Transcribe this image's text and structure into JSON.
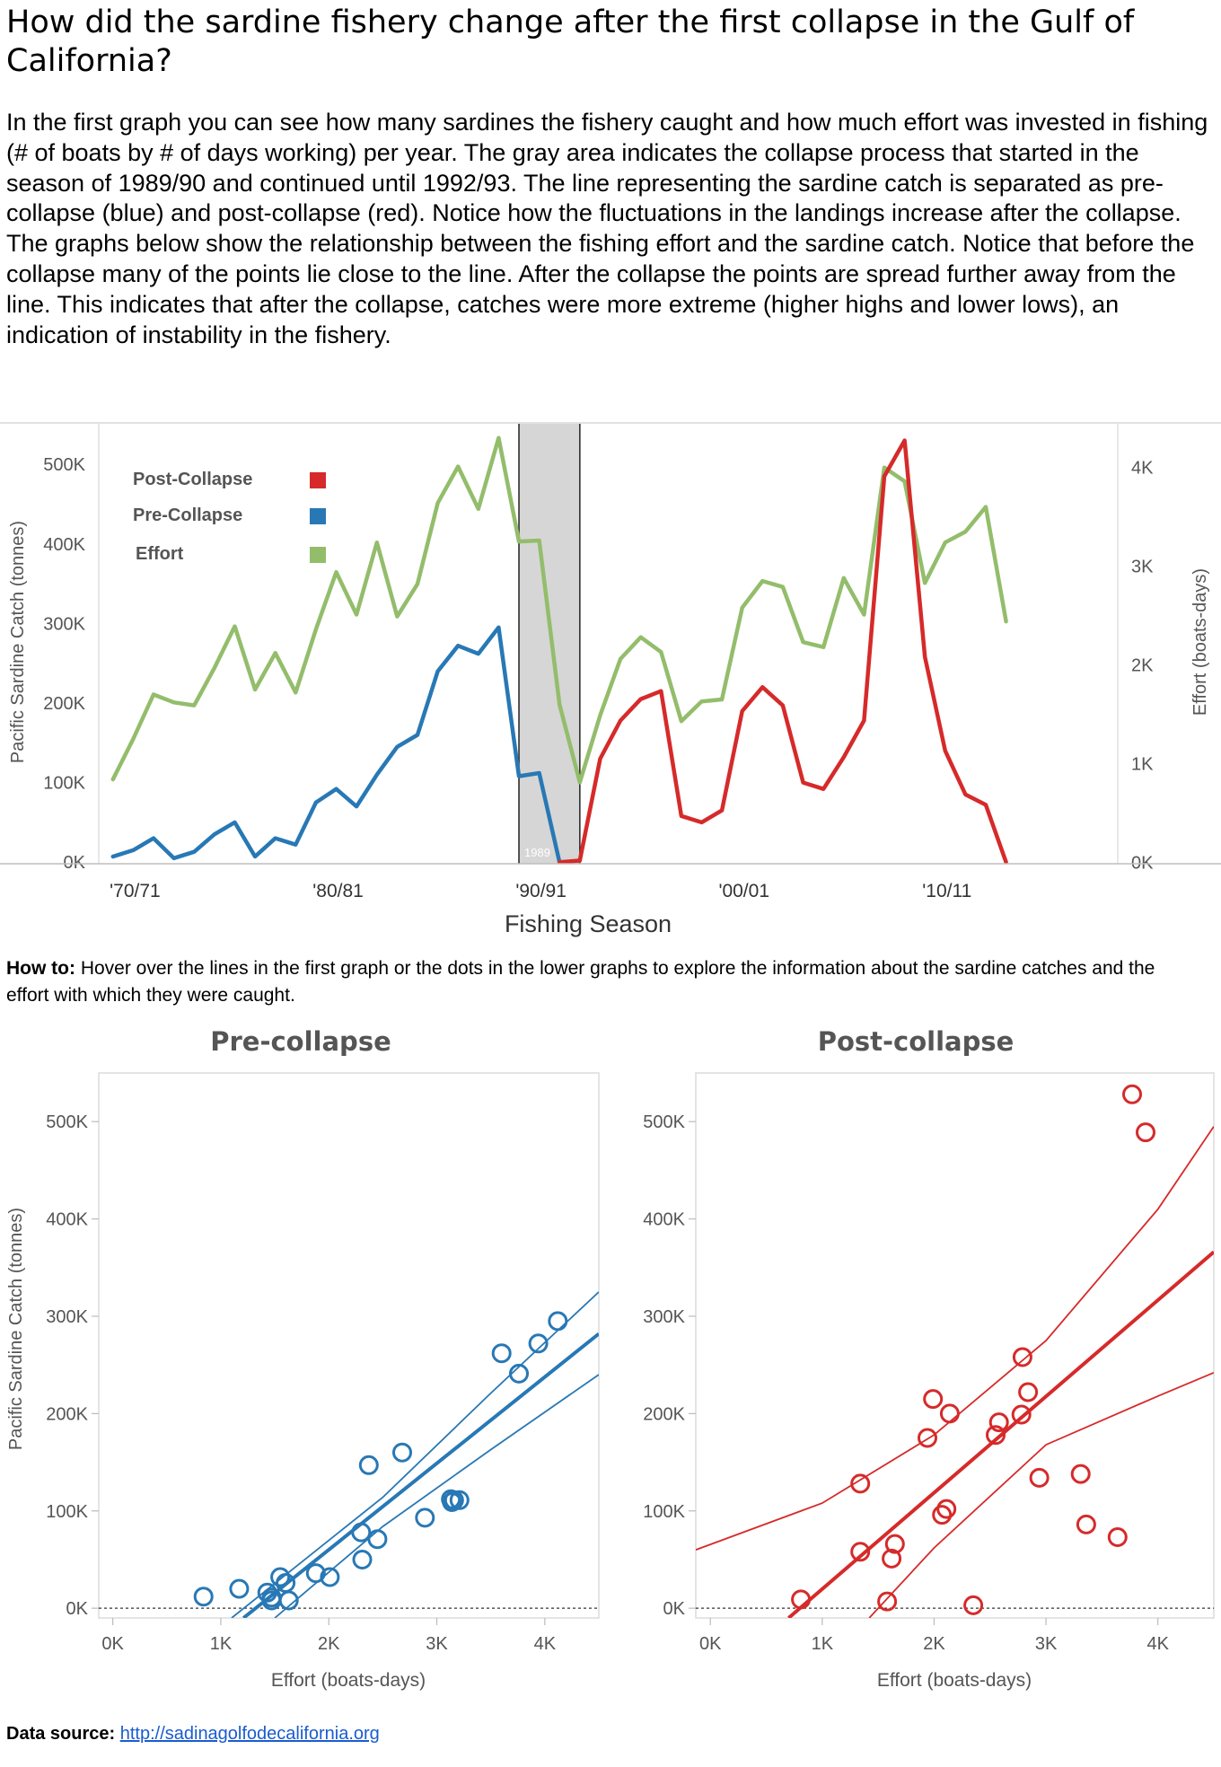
{
  "title": "How did the sardine fishery change after the first collapse in the Gulf of California?",
  "intro": "In the first graph you can see how many sardines the fishery caught and how much effort was invested in fishing (# of boats by # of days working) per year. The gray area indicates the collapse process that started in the season of 1989/90 and continued until 1992/93. The line representing the sardine catch is separated as pre-collapse (blue) and post-collapse (red). Notice how the fluctuations in the landings increase after the collapse. The graphs below show the relationship between the fishing effort and the sardine catch. Notice that before the collapse many of the points lie close to the line. After the collapse the points are spread further away from the line. This indicates that after the collapse, catches were more extreme (higher highs and lower lows), an indication of instability in the fishery.",
  "howto": {
    "label": "How to:",
    "text": "Hover over the lines in the first graph or the dots in the lower graphs to explore the information about the sardine catches and the effort with which they were caught."
  },
  "source": {
    "label": "Data source:",
    "link": "http://sadinagolfodecalifornia.org"
  },
  "colors": {
    "pre": "#2878b5",
    "post": "#d62a2a",
    "effort": "#93bd6b",
    "collapse_band": "#d6d6d6",
    "axis_text": "#555555"
  },
  "chart_data": [
    {
      "type": "line",
      "title": "",
      "xlabel": "Fishing Season",
      "ylabel": "Pacific Sardine Catch (tonnes)",
      "y2label": "Effort (boats-days)",
      "xlim": [
        1968.3,
        2018.5
      ],
      "ylim": [
        -2000,
        542000
      ],
      "y2lim": [
        -15,
        4370
      ],
      "x_ticks": [
        1970,
        1980,
        1990,
        2000,
        2010
      ],
      "x_tick_labels": [
        "'70/71",
        "'80/81",
        "'90/91",
        "'00/01",
        "'10/11"
      ],
      "y_ticks": [
        0,
        100000,
        200000,
        300000,
        400000,
        500000
      ],
      "y_tick_labels": [
        "0K",
        "100K",
        "200K",
        "300K",
        "400K",
        "500K"
      ],
      "y2_ticks": [
        0,
        1000,
        2000,
        3000,
        4000
      ],
      "y2_tick_labels": [
        "0K",
        "1K",
        "2K",
        "3K",
        "4K"
      ],
      "collapse_band": [
        1989,
        1992
      ],
      "collapse_band_label": "1989",
      "legend_position": "top-left",
      "legend": [
        "Post-Collapse",
        "Pre-Collapse",
        "Effort"
      ],
      "series": [
        {
          "name": "Pre-Collapse",
          "axis": "left",
          "color_key": "pre",
          "x": [
            1969,
            1970,
            1971,
            1972,
            1973,
            1974,
            1975,
            1976,
            1977,
            1978,
            1979,
            1980,
            1981,
            1982,
            1983,
            1984,
            1985,
            1986,
            1987,
            1988,
            1989,
            1990,
            1991
          ],
          "y": [
            7000,
            15000,
            30000,
            5000,
            13000,
            35000,
            50000,
            7000,
            30000,
            22000,
            75000,
            92000,
            70000,
            110000,
            145000,
            160000,
            240000,
            272000,
            262000,
            295000,
            108000,
            112000,
            0
          ]
        },
        {
          "name": "Post-Collapse",
          "axis": "left",
          "color_key": "post",
          "x": [
            1991,
            1992,
            1993,
            1994,
            1995,
            1996,
            1997,
            1998,
            1999,
            2000,
            2001,
            2002,
            2003,
            2004,
            2005,
            2006,
            2007,
            2008,
            2009,
            2010,
            2011,
            2012,
            2013
          ],
          "y": [
            0,
            2000,
            130000,
            178000,
            205000,
            215000,
            58000,
            50000,
            65000,
            190000,
            220000,
            197000,
            100000,
            92000,
            132000,
            178000,
            485000,
            530000,
            258000,
            140000,
            85000,
            72000,
            0
          ]
        },
        {
          "name": "Effort",
          "axis": "right",
          "color_key": "effort",
          "x": [
            1969,
            1970,
            1971,
            1972,
            1973,
            1974,
            1975,
            1976,
            1977,
            1978,
            1979,
            1980,
            1981,
            1982,
            1983,
            1984,
            1985,
            1986,
            1987,
            1988,
            1989,
            1990,
            1991,
            1992,
            1993,
            1994,
            1995,
            1996,
            1997,
            1998,
            1999,
            2000,
            2001,
            2002,
            2003,
            2004,
            2005,
            2006,
            2007,
            2008,
            2009,
            2010,
            2011,
            2012,
            2013
          ],
          "y": [
            840,
            1250,
            1700,
            1620,
            1590,
            1970,
            2390,
            1750,
            2120,
            1720,
            2360,
            2940,
            2510,
            3240,
            2490,
            2820,
            3640,
            4010,
            3580,
            4300,
            3250,
            3260,
            1600,
            810,
            1490,
            2060,
            2280,
            2130,
            1430,
            1630,
            1650,
            2580,
            2850,
            2790,
            2230,
            2180,
            2880,
            2510,
            4000,
            3860,
            2830,
            3240,
            3350,
            3600,
            2440
          ]
        }
      ]
    },
    {
      "type": "scatter",
      "title": "Pre-collapse",
      "xlabel": "Effort (boats-days)",
      "ylabel": "Pacific Sardine Catch (tonnes)",
      "xlim": [
        -130,
        4500
      ],
      "ylim": [
        -10000,
        550000
      ],
      "x_ticks": [
        0,
        1000,
        2000,
        3000,
        4000
      ],
      "x_tick_labels": [
        "0K",
        "1K",
        "2K",
        "3K",
        "4K"
      ],
      "y_ticks": [
        0,
        100000,
        200000,
        300000,
        400000,
        500000
      ],
      "y_tick_labels": [
        "0K",
        "100K",
        "200K",
        "300K",
        "400K",
        "500K"
      ],
      "color_key": "pre",
      "points": [
        [
          840,
          12000
        ],
        [
          1170,
          20000
        ],
        [
          1430,
          16000
        ],
        [
          1470,
          11000
        ],
        [
          1550,
          32000
        ],
        [
          1470,
          8000
        ],
        [
          1600,
          26000
        ],
        [
          1630,
          8000
        ],
        [
          1880,
          36000
        ],
        [
          2010,
          32000
        ],
        [
          2300,
          78000
        ],
        [
          2310,
          50000
        ],
        [
          2370,
          147000
        ],
        [
          2450,
          71000
        ],
        [
          2680,
          160000
        ],
        [
          2890,
          93000
        ],
        [
          3130,
          112000
        ],
        [
          3140,
          109000
        ],
        [
          3160,
          111000
        ],
        [
          3210,
          111000
        ],
        [
          3600,
          262000
        ],
        [
          3760,
          241000
        ],
        [
          3940,
          272000
        ],
        [
          4120,
          295000
        ]
      ],
      "trend": [
        [
          1210,
          -10000
        ],
        [
          4500,
          282000
        ]
      ],
      "band_upper": [
        [
          1100,
          -10000
        ],
        [
          2500,
          114000
        ],
        [
          3500,
          221000
        ],
        [
          4500,
          325000
        ]
      ],
      "band_lower": [
        [
          1500,
          -10000
        ],
        [
          2500,
          84000
        ],
        [
          3500,
          163000
        ],
        [
          4500,
          240000
        ]
      ]
    },
    {
      "type": "scatter",
      "title": "Post-collapse",
      "xlabel": "Effort (boats-days)",
      "ylabel": "",
      "xlim": [
        -130,
        4500
      ],
      "ylim": [
        -10000,
        550000
      ],
      "x_ticks": [
        0,
        1000,
        2000,
        3000,
        4000
      ],
      "x_tick_labels": [
        "0K",
        "1K",
        "2K",
        "3K",
        "4K"
      ],
      "y_ticks": [
        0,
        100000,
        200000,
        300000,
        400000,
        500000
      ],
      "y_tick_labels": [
        "0K",
        "100K",
        "200K",
        "300K",
        "400K",
        "500K"
      ],
      "color_key": "post",
      "points": [
        [
          810,
          9000
        ],
        [
          1340,
          58000
        ],
        [
          1340,
          128000
        ],
        [
          1580,
          7000
        ],
        [
          1620,
          51000
        ],
        [
          1650,
          66000
        ],
        [
          1940,
          175000
        ],
        [
          1990,
          215000
        ],
        [
          2070,
          96000
        ],
        [
          2110,
          102000
        ],
        [
          2140,
          200000
        ],
        [
          2350,
          3000
        ],
        [
          2550,
          178000
        ],
        [
          2580,
          191000
        ],
        [
          2780,
          199000
        ],
        [
          2790,
          258000
        ],
        [
          2840,
          222000
        ],
        [
          2940,
          134000
        ],
        [
          3310,
          138000
        ],
        [
          3360,
          86000
        ],
        [
          3640,
          73000
        ],
        [
          3770,
          528000
        ],
        [
          3890,
          489000
        ]
      ],
      "trend": [
        [
          700,
          -10000
        ],
        [
          4500,
          366000
        ]
      ],
      "band_upper": [
        [
          -130,
          60000
        ],
        [
          1000,
          108000
        ],
        [
          2000,
          178000
        ],
        [
          3000,
          275000
        ],
        [
          4000,
          410000
        ],
        [
          4500,
          495000
        ]
      ],
      "band_lower": [
        [
          1420,
          -10000
        ],
        [
          2000,
          62000
        ],
        [
          3000,
          168000
        ],
        [
          4000,
          218000
        ],
        [
          4500,
          242000
        ]
      ]
    }
  ]
}
